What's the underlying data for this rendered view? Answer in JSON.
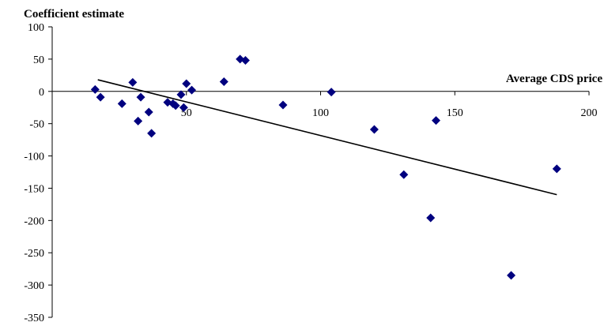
{
  "chart_data": {
    "type": "scatter",
    "ylabel": "Coefficient estimate",
    "xlabel": "Average CDS price",
    "xlim": [
      0,
      200
    ],
    "ylim": [
      -350,
      100
    ],
    "x_ticks": [
      50,
      100,
      150,
      200
    ],
    "x_tick_labels": [
      "50",
      "100",
      "150",
      "200"
    ],
    "y_ticks": [
      100,
      50,
      0,
      -50,
      -100,
      -150,
      -200,
      -250,
      -300,
      -350
    ],
    "y_tick_labels": [
      "100",
      "50",
      "0",
      "-50",
      "-100",
      "-150",
      "-200",
      "-250",
      "-300",
      "-350"
    ],
    "grid": false,
    "legend": "none",
    "marker_color": "#00007f",
    "line_color": "#000000",
    "series": [
      {
        "type": "scatter",
        "marker": "diamond",
        "points": [
          [
            16,
            3
          ],
          [
            18,
            -9
          ],
          [
            26,
            -19
          ],
          [
            30,
            14
          ],
          [
            32,
            -46
          ],
          [
            33,
            -9
          ],
          [
            36,
            -32
          ],
          [
            37,
            -65
          ],
          [
            43,
            -17
          ],
          [
            45,
            -19
          ],
          [
            46,
            -22
          ],
          [
            48,
            -5
          ],
          [
            49,
            -25
          ],
          [
            50,
            12
          ],
          [
            52,
            2
          ],
          [
            64,
            15
          ],
          [
            70,
            50
          ],
          [
            72,
            48
          ],
          [
            86,
            -21
          ],
          [
            104,
            -1
          ],
          [
            120,
            -59
          ],
          [
            131,
            -129
          ],
          [
            141,
            -196
          ],
          [
            143,
            -45
          ],
          [
            171,
            -285
          ],
          [
            188,
            -120
          ]
        ]
      },
      {
        "type": "line",
        "points": [
          [
            17,
            18
          ],
          [
            188,
            -160
          ]
        ]
      }
    ]
  }
}
